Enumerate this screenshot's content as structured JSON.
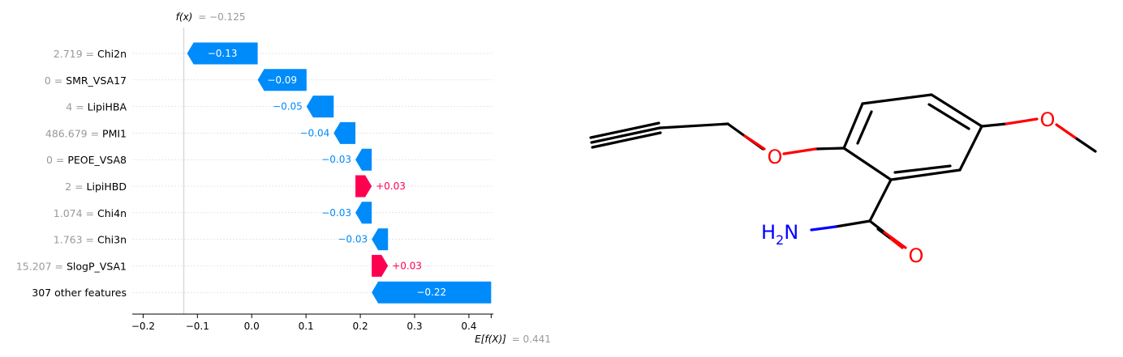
{
  "chart_data": {
    "type": "waterfall",
    "fx_label": "f(x)",
    "fx_value": "= −0.125",
    "efx_label": "E[f(X)]",
    "efx_value": "= 0.441",
    "base_value": 0.441,
    "final_value": -0.125,
    "features": [
      {
        "value": "2.719",
        "name": "Chi2n",
        "shap": -0.13,
        "label": "−0.13"
      },
      {
        "value": "0",
        "name": "SMR_VSA17",
        "shap": -0.09,
        "label": "−0.09"
      },
      {
        "value": "4",
        "name": "LipiHBA",
        "shap": -0.05,
        "label": "−0.05"
      },
      {
        "value": "486.679",
        "name": "PMI1",
        "shap": -0.04,
        "label": "−0.04"
      },
      {
        "value": "0",
        "name": "PEOE_VSA8",
        "shap": -0.03,
        "label": "−0.03"
      },
      {
        "value": "2",
        "name": "LipiHBD",
        "shap": 0.03,
        "label": "+0.03"
      },
      {
        "value": "1.074",
        "name": "Chi4n",
        "shap": -0.03,
        "label": "−0.03"
      },
      {
        "value": "1.763",
        "name": "Chi3n",
        "shap": -0.03,
        "label": "−0.03"
      },
      {
        "value": "15.207",
        "name": "SlogP_VSA1",
        "shap": 0.03,
        "label": "+0.03"
      },
      {
        "value": "",
        "name": "307 other features",
        "shap": -0.22,
        "label": "−0.22"
      }
    ],
    "xlim": [
      -0.22,
      0.445
    ],
    "xticks": [
      -0.2,
      -0.1,
      0.0,
      0.1,
      0.2,
      0.3,
      0.4
    ],
    "xtick_labels": [
      "−0.2",
      "−0.1",
      "0.0",
      "0.1",
      "0.2",
      "0.3",
      "0.4"
    ],
    "colors": {
      "negative": "#008bfb",
      "positive": "#ff0051",
      "muted": "#999999",
      "text": "#000000"
    }
  },
  "molecule": {
    "name": "2-(prop-2-ynyloxy)-5-methoxybenzamide",
    "atom_labels": {
      "o1": "O",
      "o2": "O",
      "o3": "O",
      "n": "H",
      "n_sub": "2",
      "n_tail": "N"
    },
    "colors": {
      "bond": "#000000",
      "oxygen": "#ff0000",
      "nitrogen": "#0000ff"
    }
  }
}
